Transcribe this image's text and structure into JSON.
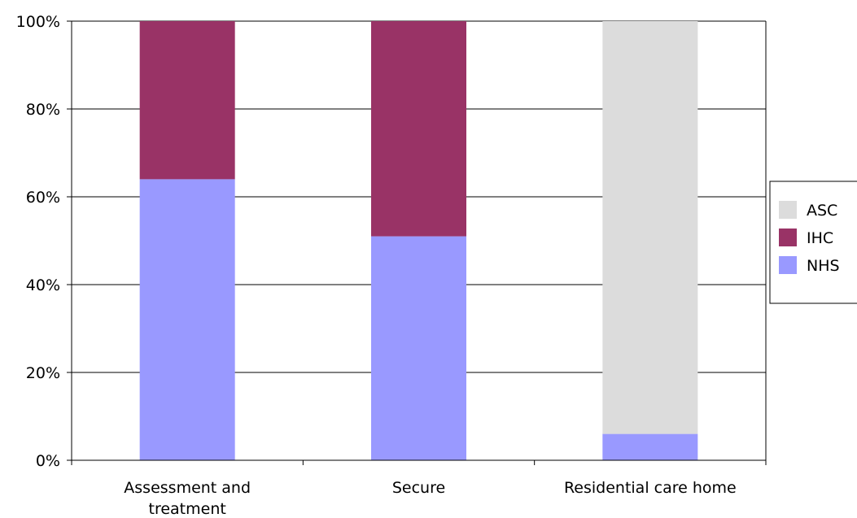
{
  "chart_data": {
    "type": "bar",
    "stacked": true,
    "percent_stacked": true,
    "categories": [
      [
        "Assessment and",
        "treatment"
      ],
      [
        "Secure"
      ],
      [
        "Residential care home"
      ]
    ],
    "series": [
      {
        "name": "NHS",
        "color": "#9999ff",
        "values": [
          64,
          51,
          6
        ]
      },
      {
        "name": "IHC",
        "color": "#993366",
        "values": [
          36,
          49,
          0
        ]
      },
      {
        "name": "ASC",
        "color": "#dcdcdc",
        "values": [
          0,
          0,
          94
        ]
      }
    ],
    "legend_order": [
      "ASC",
      "IHC",
      "NHS"
    ],
    "yticks": [
      "0%",
      "20%",
      "40%",
      "60%",
      "80%",
      "100%"
    ],
    "ylim": [
      0,
      100
    ],
    "grid": true,
    "legend_position": "right",
    "title": "",
    "xlabel": "",
    "ylabel": ""
  }
}
